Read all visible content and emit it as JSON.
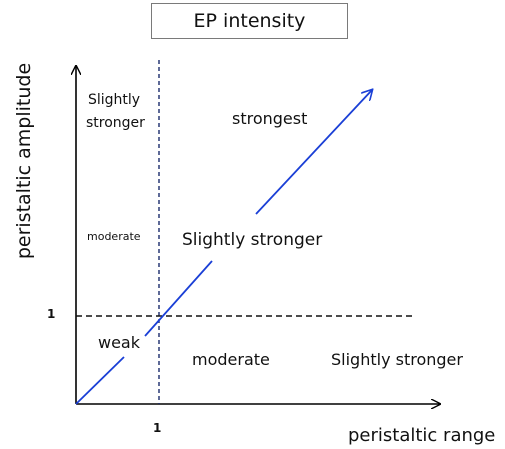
{
  "title": "EP intensity",
  "axes": {
    "x_label": "peristaltic range",
    "y_label": "peristaltic  amplitude",
    "x_tick": "1",
    "y_tick": "1"
  },
  "regions": {
    "top_left": [
      "Slightly",
      "stronger"
    ],
    "top_right": "strongest",
    "middle_left": "moderate",
    "middle_right": "Slightly stronger",
    "bottom_left": "weak",
    "bottom_middle": "moderate",
    "bottom_right": "Slightly stronger"
  },
  "colors": {
    "arrow": "#1a3fd6",
    "axes": "#000000",
    "threshold_lines": "#111111"
  }
}
